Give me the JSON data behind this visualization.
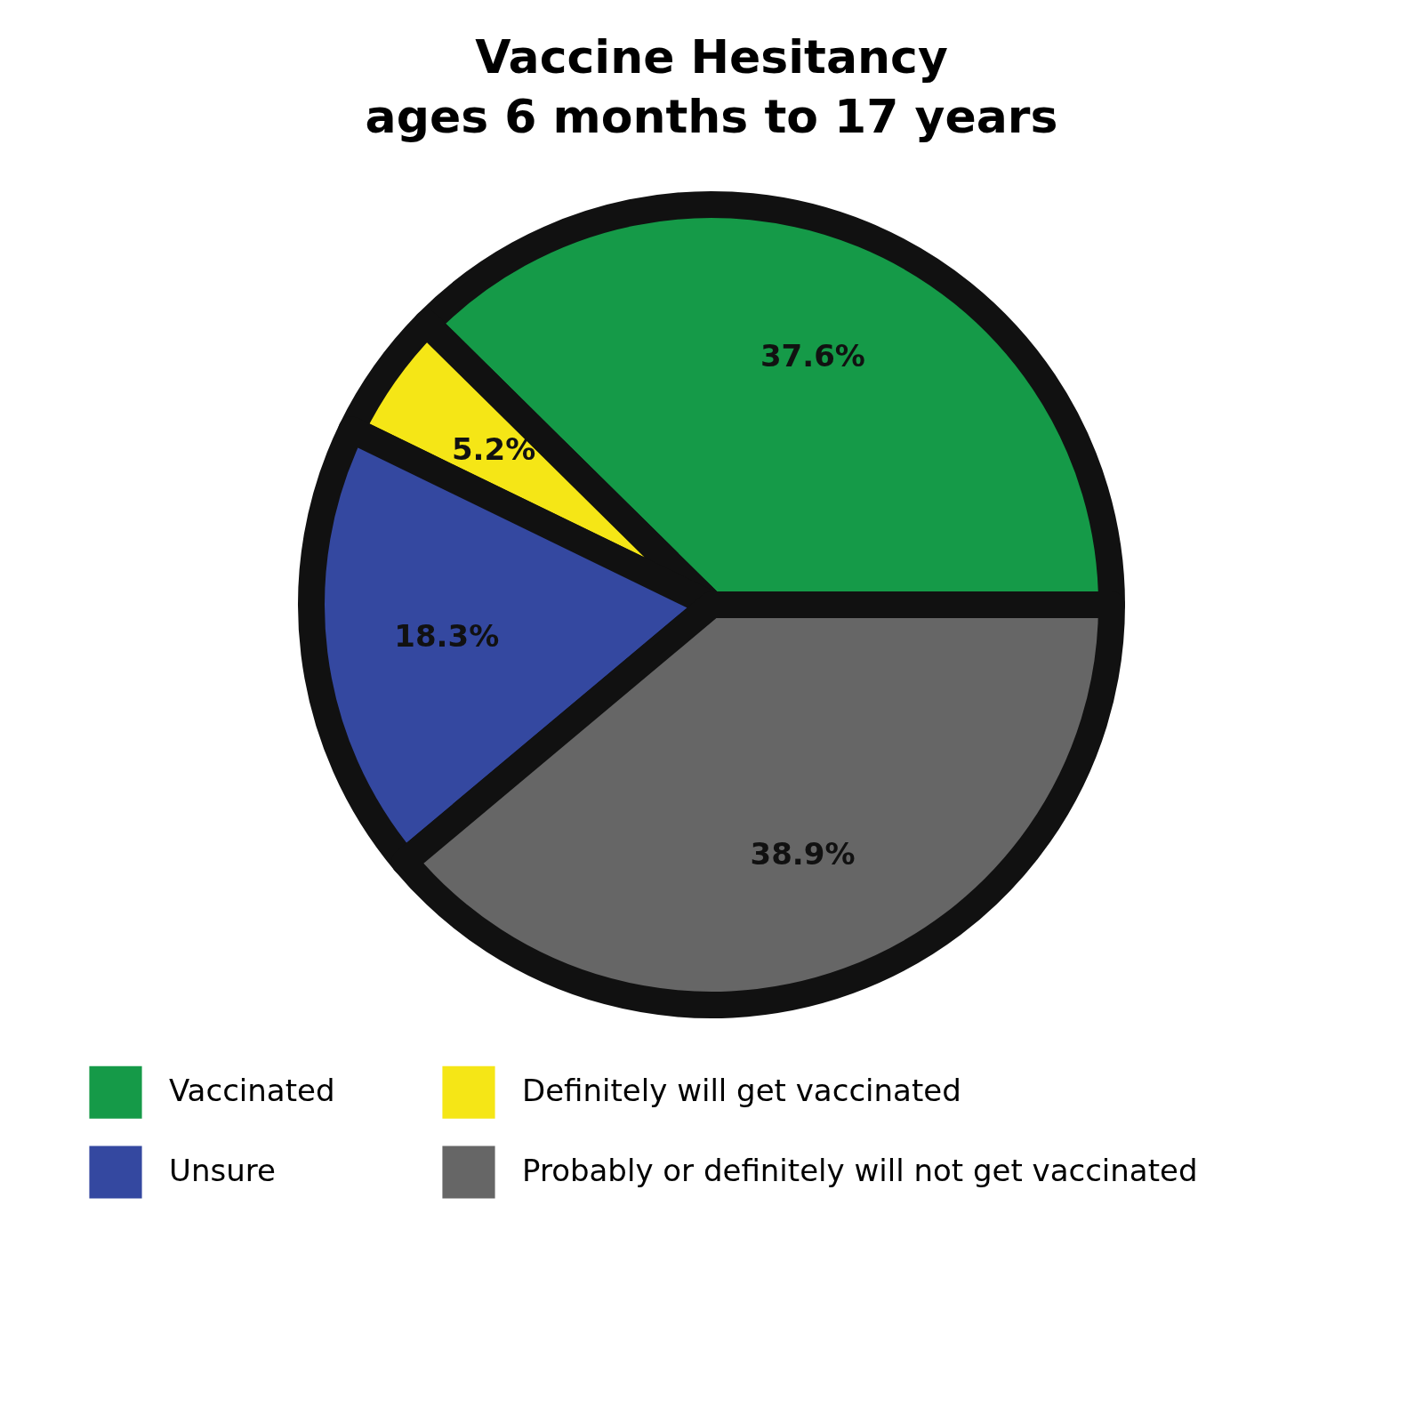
{
  "chart_data": {
    "type": "pie",
    "title": "Vaccine Hesitancy",
    "subtitle": "ages 6 months to 17 years",
    "categories": [
      "Vaccinated",
      "Definitely will get vaccinated",
      "Unsure",
      "Probably or definitely will not get vaccinated"
    ],
    "values": [
      37.6,
      5.2,
      18.3,
      38.9
    ],
    "colors": [
      "#159a48",
      "#f5e616",
      "#3448a0",
      "#666666"
    ],
    "value_labels": [
      "37.6%",
      "5.2%",
      "18.3%",
      "38.9%"
    ],
    "legend": "bottom"
  }
}
